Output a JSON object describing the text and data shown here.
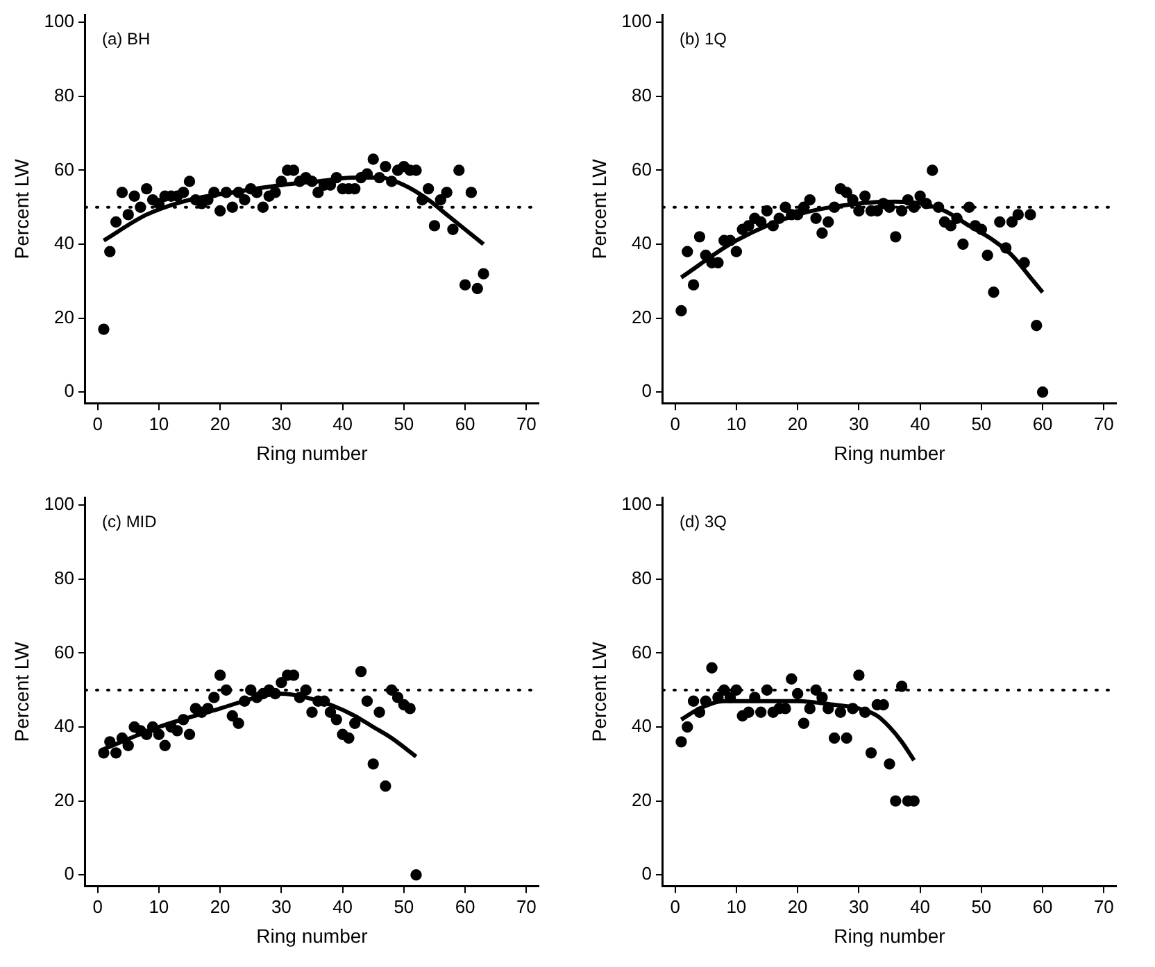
{
  "chart_data": [
    {
      "type": "scatter",
      "annotations": [
        "(a) BH"
      ],
      "xlabel": "Ring number",
      "ylabel": "Percent LW",
      "xlim": [
        -2,
        72
      ],
      "xticks": [
        0,
        10,
        20,
        30,
        40,
        50,
        60,
        70
      ],
      "ylim": [
        -3,
        102
      ],
      "yticks": [
        0,
        20,
        40,
        60,
        80,
        100
      ],
      "grid": false,
      "legend": false,
      "marker": "circle",
      "ref_lines": [
        {
          "axis": "y",
          "value": 50,
          "line_style": "dotted",
          "color": "#000000"
        }
      ],
      "series": [
        {
          "type": "scatter",
          "color": "#000000",
          "x": [
            1,
            2,
            3,
            4,
            5,
            6,
            7,
            8,
            9,
            10,
            11,
            12,
            13,
            14,
            15,
            16,
            17,
            18,
            19,
            20,
            21,
            22,
            23,
            24,
            25,
            26,
            27,
            28,
            29,
            30,
            31,
            32,
            33,
            34,
            35,
            36,
            37,
            38,
            39,
            40,
            41,
            42,
            43,
            44,
            45,
            46,
            47,
            48,
            49,
            50,
            51,
            52,
            53,
            54,
            55,
            56,
            57,
            58,
            59,
            60,
            61,
            62,
            63
          ],
          "values": [
            17,
            38,
            46,
            54,
            48,
            53,
            50,
            55,
            52,
            51,
            53,
            53,
            53,
            54,
            57,
            52,
            51,
            52,
            54,
            49,
            54,
            50,
            54,
            52,
            55,
            54,
            50,
            53,
            54,
            57,
            60,
            60,
            57,
            58,
            57,
            54,
            56,
            56,
            58,
            55,
            55,
            55,
            58,
            59,
            63,
            58,
            61,
            57,
            60,
            61,
            60,
            60,
            52,
            55,
            45,
            52,
            54,
            44,
            60,
            29,
            54,
            28,
            32
          ]
        },
        {
          "type": "line",
          "color": "#000000",
          "marker": "none",
          "x": [
            1,
            8,
            15,
            22,
            30,
            36,
            42,
            46,
            50,
            54,
            57,
            60,
            63
          ],
          "values": [
            41,
            48,
            52,
            54,
            56,
            57,
            58,
            58,
            56,
            52,
            48,
            44,
            40
          ]
        }
      ]
    },
    {
      "type": "scatter",
      "annotations": [
        "(b) 1Q"
      ],
      "xlabel": "Ring number",
      "ylabel": "Percent LW",
      "xlim": [
        -2,
        72
      ],
      "xticks": [
        0,
        10,
        20,
        30,
        40,
        50,
        60,
        70
      ],
      "ylim": [
        -3,
        102
      ],
      "yticks": [
        0,
        20,
        40,
        60,
        80,
        100
      ],
      "grid": false,
      "legend": false,
      "marker": "circle",
      "ref_lines": [
        {
          "axis": "y",
          "value": 50,
          "line_style": "dotted",
          "color": "#000000"
        }
      ],
      "series": [
        {
          "type": "scatter",
          "color": "#000000",
          "x": [
            1,
            2,
            3,
            4,
            5,
            6,
            7,
            8,
            9,
            10,
            11,
            12,
            13,
            14,
            15,
            16,
            17,
            18,
            19,
            20,
            21,
            22,
            23,
            24,
            25,
            26,
            27,
            28,
            29,
            30,
            31,
            32,
            33,
            34,
            35,
            36,
            37,
            38,
            39,
            40,
            41,
            42,
            43,
            44,
            45,
            46,
            47,
            48,
            49,
            50,
            51,
            52,
            53,
            54,
            55,
            56,
            57,
            58,
            59,
            60
          ],
          "values": [
            22,
            38,
            29,
            42,
            37,
            35,
            35,
            41,
            41,
            38,
            44,
            45,
            47,
            46,
            49,
            45,
            47,
            50,
            48,
            48,
            50,
            52,
            47,
            43,
            46,
            50,
            55,
            54,
            52,
            49,
            53,
            49,
            49,
            51,
            50,
            42,
            49,
            52,
            50,
            53,
            51,
            60,
            50,
            46,
            45,
            47,
            40,
            50,
            45,
            44,
            37,
            27,
            46,
            39,
            46,
            48,
            35,
            48,
            18,
            0
          ]
        },
        {
          "type": "line",
          "color": "#000000",
          "marker": "none",
          "x": [
            1,
            10,
            20,
            30,
            36,
            40,
            44,
            48,
            52,
            55,
            58,
            60
          ],
          "values": [
            31,
            41,
            48,
            51,
            51.5,
            51,
            49,
            45,
            41,
            37,
            31,
            27
          ]
        }
      ]
    },
    {
      "type": "scatter",
      "annotations": [
        "(c) MID"
      ],
      "xlabel": "Ring number",
      "ylabel": "Percent LW",
      "xlim": [
        -2,
        72
      ],
      "xticks": [
        0,
        10,
        20,
        30,
        40,
        50,
        60,
        70
      ],
      "ylim": [
        -3,
        102
      ],
      "yticks": [
        0,
        20,
        40,
        60,
        80,
        100
      ],
      "grid": false,
      "legend": false,
      "marker": "circle",
      "ref_lines": [
        {
          "axis": "y",
          "value": 50,
          "line_style": "dotted",
          "color": "#000000"
        }
      ],
      "series": [
        {
          "type": "scatter",
          "color": "#000000",
          "x": [
            1,
            2,
            3,
            4,
            5,
            6,
            7,
            8,
            9,
            10,
            11,
            12,
            13,
            14,
            15,
            16,
            17,
            18,
            19,
            20,
            21,
            22,
            23,
            24,
            25,
            26,
            27,
            28,
            29,
            30,
            31,
            32,
            33,
            34,
            35,
            36,
            37,
            38,
            39,
            40,
            41,
            42,
            43,
            44,
            45,
            46,
            47,
            48,
            49,
            50,
            51,
            52
          ],
          "values": [
            33,
            36,
            33,
            37,
            35,
            40,
            39,
            38,
            40,
            38,
            35,
            40,
            39,
            42,
            38,
            45,
            44,
            45,
            48,
            54,
            50,
            43,
            41,
            47,
            50,
            48,
            49,
            50,
            49,
            52,
            54,
            54,
            48,
            50,
            44,
            47,
            47,
            44,
            42,
            38,
            37,
            41,
            55,
            47,
            30,
            44,
            24,
            50,
            48,
            46,
            45,
            0
          ]
        },
        {
          "type": "line",
          "color": "#000000",
          "marker": "none",
          "x": [
            1,
            10,
            20,
            26,
            30,
            34,
            38,
            42,
            45,
            48,
            52
          ],
          "values": [
            34,
            40,
            45,
            48,
            49,
            48,
            46,
            43,
            40,
            37,
            32
          ]
        }
      ]
    },
    {
      "type": "scatter",
      "annotations": [
        "(d) 3Q"
      ],
      "xlabel": "Ring number",
      "ylabel": "Percent LW",
      "xlim": [
        -2,
        72
      ],
      "xticks": [
        0,
        10,
        20,
        30,
        40,
        50,
        60,
        70
      ],
      "ylim": [
        -3,
        102
      ],
      "yticks": [
        0,
        20,
        40,
        60,
        80,
        100
      ],
      "grid": false,
      "legend": false,
      "marker": "circle",
      "ref_lines": [
        {
          "axis": "y",
          "value": 50,
          "line_style": "dotted",
          "color": "#000000"
        }
      ],
      "series": [
        {
          "type": "scatter",
          "color": "#000000",
          "x": [
            1,
            2,
            3,
            4,
            5,
            6,
            7,
            8,
            9,
            10,
            11,
            12,
            13,
            14,
            15,
            16,
            17,
            18,
            19,
            20,
            21,
            22,
            23,
            24,
            25,
            26,
            27,
            28,
            29,
            30,
            31,
            32,
            33,
            34,
            35,
            36,
            37,
            38,
            39
          ],
          "values": [
            36,
            40,
            47,
            44,
            47,
            56,
            48,
            50,
            48,
            50,
            43,
            44,
            48,
            44,
            50,
            44,
            45,
            45,
            53,
            49,
            41,
            45,
            50,
            48,
            45,
            37,
            44,
            37,
            45,
            54,
            44,
            33,
            46,
            46,
            30,
            20,
            51,
            20,
            20
          ]
        },
        {
          "type": "line",
          "color": "#000000",
          "marker": "none",
          "x": [
            1,
            4,
            8,
            14,
            20,
            26,
            30,
            33,
            35,
            37,
            39
          ],
          "values": [
            42,
            45,
            47,
            47,
            47,
            46,
            45,
            43,
            40,
            36,
            31
          ]
        }
      ]
    }
  ]
}
